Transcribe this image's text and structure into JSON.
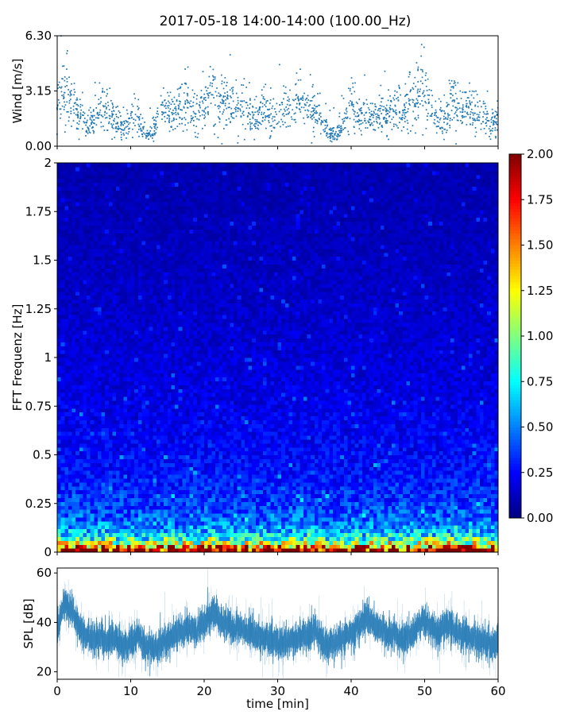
{
  "figure": {
    "title": "2017-05-18 14:00-14:00 (100.00_Hz)"
  },
  "chart_data": [
    {
      "type": "scatter",
      "name": "wind-panel",
      "ylabel": "Wind [m/s]",
      "xlim": [
        0,
        60
      ],
      "ylim": [
        0,
        6.3
      ],
      "yticks": [
        "0.00",
        "3.15",
        "6.30"
      ],
      "yticks_values": [
        0,
        3.15,
        6.3
      ],
      "x_tick_labels_visible": false,
      "marker_color": "#1f77b4",
      "approx_points": 1800,
      "envelope": {
        "x": [
          0,
          1,
          2,
          3,
          4,
          5,
          6,
          7,
          8,
          9,
          10,
          11,
          12,
          13,
          14,
          15,
          16,
          17,
          18,
          19,
          20,
          21,
          22,
          23,
          24,
          25,
          26,
          27,
          28,
          29,
          30,
          31,
          32,
          33,
          34,
          35,
          36,
          37,
          38,
          39,
          40,
          41,
          42,
          43,
          44,
          45,
          46,
          47,
          48,
          49,
          50,
          51,
          52,
          53,
          54,
          55,
          56,
          57,
          58,
          59,
          60
        ],
        "y": [
          2.2,
          3.4,
          2.6,
          1.8,
          1.2,
          1.4,
          2.2,
          2.0,
          1.4,
          1.0,
          1.6,
          1.8,
          0.6,
          0.8,
          1.6,
          2.0,
          1.6,
          2.4,
          2.2,
          1.8,
          2.2,
          3.1,
          2.2,
          2.6,
          2.0,
          2.4,
          1.8,
          1.6,
          2.2,
          1.4,
          1.8,
          2.2,
          2.0,
          2.6,
          2.2,
          2.0,
          1.6,
          0.8,
          0.6,
          1.2,
          2.6,
          1.6,
          1.8,
          1.4,
          2.0,
          1.6,
          2.2,
          1.6,
          2.6,
          2.8,
          3.4,
          2.2,
          1.2,
          1.6,
          2.8,
          1.8,
          2.4,
          2.0,
          1.8,
          1.2,
          1.4
        ]
      }
    },
    {
      "type": "heatmap",
      "name": "fft-spectrogram",
      "ylabel": "FFT Frequenz [Hz]",
      "xlim": [
        0,
        60
      ],
      "ylim": [
        0,
        2
      ],
      "yticks": [
        "0",
        "0.25",
        "0.5",
        "0.75",
        "1",
        "1.25",
        "1.5",
        "1.75",
        "2"
      ],
      "yticks_values": [
        0,
        0.25,
        0.5,
        0.75,
        1,
        1.25,
        1.5,
        1.75,
        2
      ],
      "x_tick_labels_visible": false,
      "colormap": "jet",
      "color_range": [
        0,
        2
      ],
      "time_bins": 120,
      "frequency_bins": 100,
      "colorbar": {
        "ticks": [
          "0.00",
          "0.25",
          "0.50",
          "0.75",
          "1.00",
          "1.25",
          "1.50",
          "1.75",
          "2.00"
        ],
        "ticks_values": [
          0,
          0.25,
          0.5,
          0.75,
          1,
          1.25,
          1.5,
          1.75,
          2
        ]
      }
    },
    {
      "type": "area",
      "name": "spl-panel",
      "ylabel": "SPL [dB]",
      "xlabel": "time [min]",
      "xlim": [
        0,
        60
      ],
      "ylim": [
        17,
        62
      ],
      "yticks": [
        "20",
        "40",
        "60"
      ],
      "yticks_values": [
        20,
        40,
        60
      ],
      "xticks": [
        "0",
        "10",
        "20",
        "30",
        "40",
        "50",
        "60"
      ],
      "xticks_values": [
        0,
        10,
        20,
        30,
        40,
        50,
        60
      ],
      "band_color": "#1f77b4",
      "trend": {
        "x": [
          0,
          1,
          2,
          3,
          4,
          5,
          6,
          7,
          8,
          9,
          10,
          11,
          12,
          13,
          14,
          15,
          16,
          17,
          18,
          19,
          20,
          21,
          22,
          23,
          24,
          25,
          26,
          27,
          28,
          29,
          30,
          31,
          32,
          33,
          34,
          35,
          36,
          37,
          38,
          39,
          40,
          41,
          42,
          43,
          44,
          45,
          46,
          47,
          48,
          49,
          50,
          51,
          52,
          53,
          54,
          55,
          56,
          57,
          58,
          59,
          60
        ],
        "y": [
          36,
          48,
          45,
          38,
          35,
          33,
          34,
          32,
          34,
          30,
          32,
          35,
          30,
          29,
          31,
          34,
          35,
          36,
          38,
          36,
          39,
          44,
          41,
          40,
          37,
          38,
          36,
          35,
          34,
          33,
          32,
          31,
          33,
          34,
          35,
          37,
          33,
          31,
          32,
          34,
          35,
          38,
          42,
          40,
          37,
          35,
          36,
          33,
          35,
          38,
          41,
          38,
          36,
          40,
          37,
          35,
          34,
          33,
          32,
          31,
          33
        ]
      }
    }
  ]
}
